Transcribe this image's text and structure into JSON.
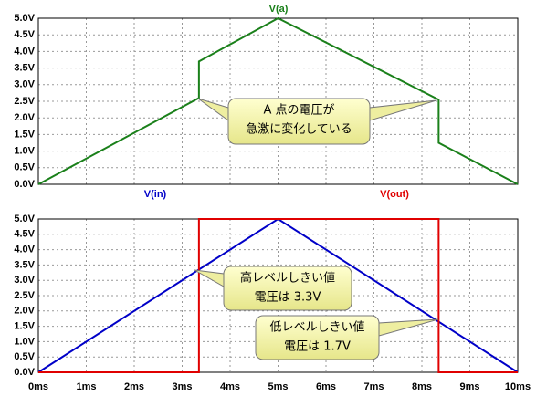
{
  "chart_data": [
    {
      "type": "line",
      "ylim": [
        0,
        5
      ],
      "yticks": [
        {
          "value": 0,
          "label": "0.0V"
        },
        {
          "value": 0.5,
          "label": "0.5V"
        },
        {
          "value": 1,
          "label": "1.0V"
        },
        {
          "value": 1.5,
          "label": "1.5V"
        },
        {
          "value": 2,
          "label": "2.0V"
        },
        {
          "value": 2.5,
          "label": "2.5V"
        },
        {
          "value": 3,
          "label": "3.0V"
        },
        {
          "value": 3.5,
          "label": "3.5V"
        },
        {
          "value": 4,
          "label": "4.0V"
        },
        {
          "value": 4.5,
          "label": "4.5V"
        },
        {
          "value": 5,
          "label": "5.0V"
        }
      ],
      "xlim": [
        0,
        10
      ],
      "xticks": [
        0,
        1,
        2,
        3,
        4,
        5,
        6,
        7,
        8,
        9,
        10
      ],
      "grid": true,
      "series": [
        {
          "name": "V(a)",
          "color": "#1a801a",
          "x": [
            0,
            3.35,
            3.35,
            5,
            8.35,
            8.35,
            10
          ],
          "values": [
            0,
            2.6,
            3.7,
            5,
            2.55,
            1.25,
            0
          ]
        }
      ],
      "annotations": [
        {
          "lines": [
            "A 点の電圧が",
            "急激に変化している"
          ]
        }
      ]
    },
    {
      "type": "line",
      "ylim": [
        0,
        5
      ],
      "yticks": [
        {
          "value": 0,
          "label": "0.0V"
        },
        {
          "value": 0.5,
          "label": "0.5V"
        },
        {
          "value": 1,
          "label": "1.0V"
        },
        {
          "value": 1.5,
          "label": "1.5V"
        },
        {
          "value": 2,
          "label": "2.0V"
        },
        {
          "value": 2.5,
          "label": "2.5V"
        },
        {
          "value": 3,
          "label": "3.0V"
        },
        {
          "value": 3.5,
          "label": "3.5V"
        },
        {
          "value": 4,
          "label": "4.0V"
        },
        {
          "value": 4.5,
          "label": "4.5V"
        },
        {
          "value": 5,
          "label": "5.0V"
        }
      ],
      "xlim": [
        0,
        10
      ],
      "xticks": [
        {
          "value": 0,
          "label": "0ms"
        },
        {
          "value": 1,
          "label": "1ms"
        },
        {
          "value": 2,
          "label": "2ms"
        },
        {
          "value": 3,
          "label": "3ms"
        },
        {
          "value": 4,
          "label": "4ms"
        },
        {
          "value": 5,
          "label": "5ms"
        },
        {
          "value": 6,
          "label": "6ms"
        },
        {
          "value": 7,
          "label": "7ms"
        },
        {
          "value": 8,
          "label": "8ms"
        },
        {
          "value": 9,
          "label": "9ms"
        },
        {
          "value": 10,
          "label": "10ms"
        }
      ],
      "grid": true,
      "series": [
        {
          "name": "V(in)",
          "color": "#0000c8",
          "x": [
            0,
            5,
            10
          ],
          "values": [
            0,
            5,
            0
          ]
        },
        {
          "name": "V(out)",
          "color": "#e00000",
          "x": [
            0,
            3.35,
            3.35,
            8.35,
            8.35,
            10
          ],
          "values": [
            0,
            0,
            5,
            5,
            0,
            0
          ]
        }
      ],
      "annotations": [
        {
          "lines": [
            "高レベルしきい値",
            "電圧は 3.3V"
          ]
        },
        {
          "lines": [
            "低レベルしきい値",
            "電圧は 1.7V"
          ]
        }
      ]
    }
  ]
}
